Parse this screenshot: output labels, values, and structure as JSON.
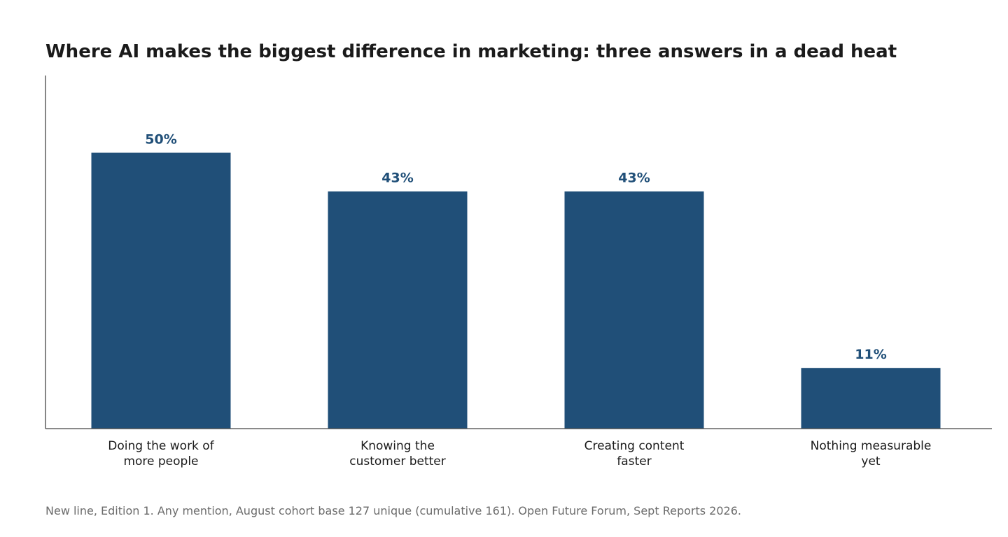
{
  "chart_data": {
    "type": "bar",
    "title": "Where AI makes the biggest difference in marketing: three answers in a dead heat",
    "categories": [
      [
        "Doing the work of",
        "more people"
      ],
      [
        "Knowing the",
        "customer better"
      ],
      [
        "Creating content",
        "faster"
      ],
      [
        "Nothing measurable",
        "yet"
      ]
    ],
    "values": [
      50,
      43,
      43,
      11
    ],
    "value_labels": [
      "50%",
      "43%",
      "43%",
      "11%"
    ],
    "unit": "%",
    "xlabel": "",
    "ylabel": "",
    "ylim": [
      0,
      64
    ],
    "grid": false,
    "legend": "none",
    "colors": {
      "bar": "#204f78",
      "value_label": "#204f78",
      "axis": "#444444",
      "title": "#1a1a1a",
      "footnote": "#6b6b6b"
    },
    "footnote": "New line, Edition 1. Any mention, August cohort base 127 unique (cumulative 161). Open Future Forum, Sept Reports 2026."
  }
}
